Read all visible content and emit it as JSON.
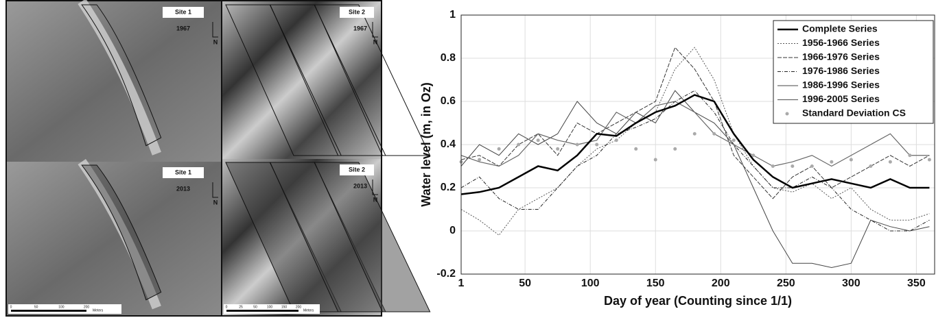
{
  "panels": [
    {
      "site": "Site 1",
      "year": "1967",
      "north": "N"
    },
    {
      "site": "Site 2",
      "year": "1967",
      "north": "N"
    },
    {
      "site": "Site  1",
      "year": "2013",
      "north": "N",
      "scale": [
        "0",
        "50",
        "100",
        "200"
      ],
      "unit": "Meters"
    },
    {
      "site": "Site 2",
      "year": "2013",
      "north": "N",
      "scale": [
        "0",
        "25",
        "50",
        "100",
        "150",
        "200"
      ],
      "unit": "Meters"
    }
  ],
  "chart_data": {
    "type": "line",
    "x_label": "Day of year (Counting since 1/1)",
    "y_label": "Water level (m, in Oz)",
    "x": [
      1,
      15,
      30,
      45,
      60,
      75,
      90,
      105,
      120,
      135,
      150,
      165,
      180,
      195,
      210,
      225,
      240,
      255,
      270,
      285,
      300,
      315,
      330,
      345,
      360
    ],
    "xlim": [
      1,
      364
    ],
    "ylim": [
      -0.2,
      1
    ],
    "xticks": [
      1,
      50,
      100,
      150,
      200,
      250,
      300,
      350
    ],
    "yticks": [
      -0.2,
      0,
      0.2,
      0.4,
      0.6,
      0.8,
      1
    ],
    "grid": true,
    "legend": "upper right",
    "series": [
      {
        "name": "Complete Series",
        "color": "#000000",
        "width": 2.5,
        "dash": "none",
        "values": [
          0.17,
          0.18,
          0.2,
          0.25,
          0.3,
          0.28,
          0.35,
          0.45,
          0.44,
          0.5,
          0.55,
          0.58,
          0.63,
          0.6,
          0.45,
          0.33,
          0.25,
          0.2,
          0.22,
          0.24,
          0.22,
          0.2,
          0.24,
          0.2,
          0.2
        ]
      },
      {
        "name": "1956-1966 Series",
        "color": "#555555",
        "width": 1,
        "dash": "2 2",
        "values": [
          0.1,
          0.05,
          -0.02,
          0.1,
          0.15,
          0.2,
          0.3,
          0.38,
          0.42,
          0.5,
          0.55,
          0.75,
          0.85,
          0.7,
          0.45,
          0.3,
          0.2,
          0.18,
          0.22,
          0.15,
          0.2,
          0.1,
          0.05,
          0.05,
          0.08
        ]
      },
      {
        "name": "1966-1976 Series",
        "color": "#333333",
        "width": 1,
        "dash": "6 2",
        "values": [
          0.33,
          0.35,
          0.3,
          0.4,
          0.45,
          0.35,
          0.5,
          0.45,
          0.5,
          0.55,
          0.6,
          0.85,
          0.75,
          0.6,
          0.35,
          0.25,
          0.15,
          0.25,
          0.3,
          0.2,
          0.25,
          0.3,
          0.35,
          0.3,
          0.35
        ]
      },
      {
        "name": "1976-1986 Series",
        "color": "#222222",
        "width": 1,
        "dash": "5 2 1 2",
        "values": [
          0.2,
          0.25,
          0.15,
          0.1,
          0.1,
          0.2,
          0.3,
          0.35,
          0.45,
          0.48,
          0.52,
          0.6,
          0.65,
          0.55,
          0.4,
          0.3,
          0.2,
          0.2,
          0.25,
          0.2,
          0.1,
          0.05,
          0.0,
          0.0,
          0.05
        ]
      },
      {
        "name": "1986-1996 Series",
        "color": "#444444",
        "width": 1,
        "dash": "none",
        "values": [
          0.3,
          0.4,
          0.35,
          0.45,
          0.4,
          0.45,
          0.6,
          0.5,
          0.45,
          0.55,
          0.5,
          0.65,
          0.55,
          0.5,
          0.4,
          0.2,
          0.0,
          -0.15,
          -0.15,
          -0.17,
          -0.15,
          0.05,
          0.02,
          0.0,
          0.02
        ]
      },
      {
        "name": "1996-2005 Series",
        "color": "#666666",
        "width": 1.2,
        "dash": "none",
        "values": [
          0.35,
          0.32,
          0.3,
          0.35,
          0.45,
          0.42,
          0.4,
          0.42,
          0.55,
          0.5,
          0.58,
          0.6,
          0.55,
          0.45,
          0.4,
          0.35,
          0.3,
          0.32,
          0.35,
          0.3,
          0.35,
          0.4,
          0.45,
          0.35,
          0.35
        ]
      },
      {
        "name": "Standard Deviation CS",
        "color": "#aaaaaa",
        "marker": "circle",
        "values": [
          0.32,
          0.33,
          0.38,
          0.4,
          0.42,
          0.38,
          0.4,
          0.4,
          0.42,
          0.38,
          0.33,
          0.38,
          0.45,
          0.45,
          0.42,
          0.35,
          0.3,
          0.3,
          0.3,
          0.32,
          0.33,
          0.3,
          0.32,
          0.35,
          0.33
        ]
      }
    ]
  }
}
